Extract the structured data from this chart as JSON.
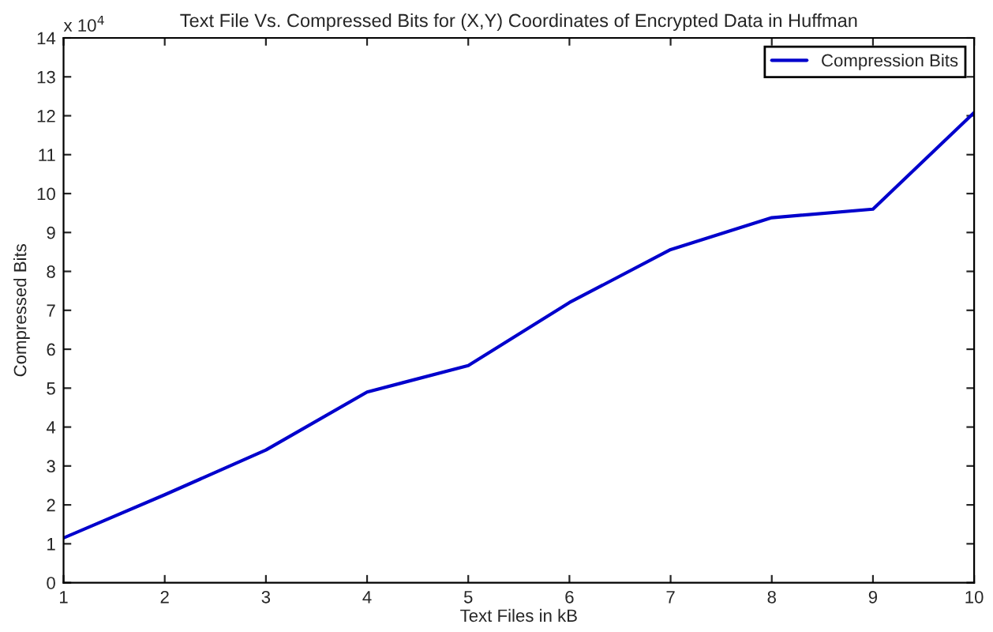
{
  "chart_data": {
    "type": "line",
    "title": "Text File Vs. Compressed Bits for (X,Y) Coordinates of Encrypted Data in Huffman",
    "xlabel": "Text Files in kB",
    "ylabel": "Compressed Bits",
    "annotations": [
      "x 10$^{4}$"
    ],
    "x": [
      1,
      2,
      3,
      4,
      5,
      6,
      7,
      8,
      9,
      10
    ],
    "series": [
      {
        "name": "Compression Bits",
        "color": "#0000cc",
        "values": [
          1.15,
          2.26,
          3.41,
          4.9,
          5.58,
          7.2,
          8.56,
          9.38,
          9.6,
          12.08
        ]
      }
    ],
    "xlim": [
      1,
      10
    ],
    "xticks": [
      1,
      2,
      3,
      4,
      5,
      6,
      7,
      8,
      9,
      10
    ],
    "ylim": [
      0,
      14
    ],
    "yticks": [
      0,
      1,
      2,
      3,
      4,
      5,
      6,
      7,
      8,
      9,
      10,
      11,
      12,
      13,
      14
    ],
    "grid": false,
    "legend": "top right",
    "marker": "none",
    "line_style": "solid"
  }
}
